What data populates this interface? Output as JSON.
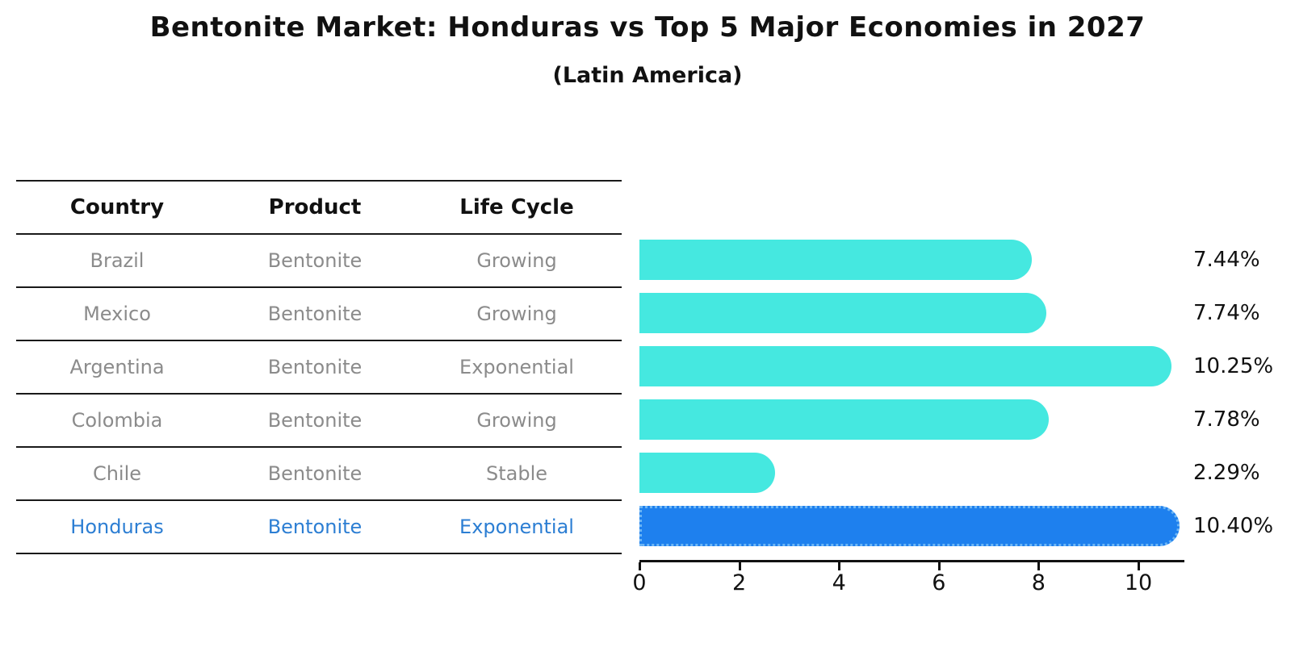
{
  "title": "Bentonite Market: Honduras vs Top 5 Major Economies in 2027",
  "subtitle": "(Latin America)",
  "table": {
    "headers": [
      "Country",
      "Product",
      "Life Cycle"
    ],
    "rows": [
      {
        "country": "Brazil",
        "product": "Bentonite",
        "life_cycle": "Growing"
      },
      {
        "country": "Mexico",
        "product": "Bentonite",
        "life_cycle": "Growing"
      },
      {
        "country": "Argentina",
        "product": "Bentonite",
        "life_cycle": "Exponential"
      },
      {
        "country": "Colombia",
        "product": "Bentonite",
        "life_cycle": "Growing"
      },
      {
        "country": "Chile",
        "product": "Bentonite",
        "life_cycle": "Stable"
      },
      {
        "country": "Honduras",
        "product": "Bentonite",
        "life_cycle": "Exponential"
      }
    ],
    "highlighted_country": "Honduras"
  },
  "chart_data": {
    "type": "bar",
    "orientation": "horizontal",
    "title": "Bentonite Market: Honduras vs Top 5 Major Economies in 2027",
    "subtitle": "(Latin America)",
    "categories": [
      "Brazil",
      "Mexico",
      "Argentina",
      "Colombia",
      "Chile",
      "Honduras"
    ],
    "values": [
      7.44,
      7.74,
      10.25,
      7.78,
      2.29,
      10.4
    ],
    "value_labels": [
      "7.44%",
      "7.74%",
      "10.25%",
      "7.78%",
      "2.29%",
      "10.40%"
    ],
    "value_unit": "%",
    "x_ticks": [
      0,
      2,
      4,
      6,
      8,
      10
    ],
    "xlim": [
      0,
      10.9
    ],
    "grid": false,
    "legend": false,
    "highlight_index": 5
  },
  "colors": {
    "background": "#ffffff",
    "bar": "#45e8e0",
    "highlight_bar": "#1e80ee",
    "highlight_bar_border": "#6db6f5",
    "row_text": "#8b8b8b",
    "highlight_text": "#2c7ed3",
    "heading_text": "#111111",
    "line": "#1a1a1a"
  }
}
